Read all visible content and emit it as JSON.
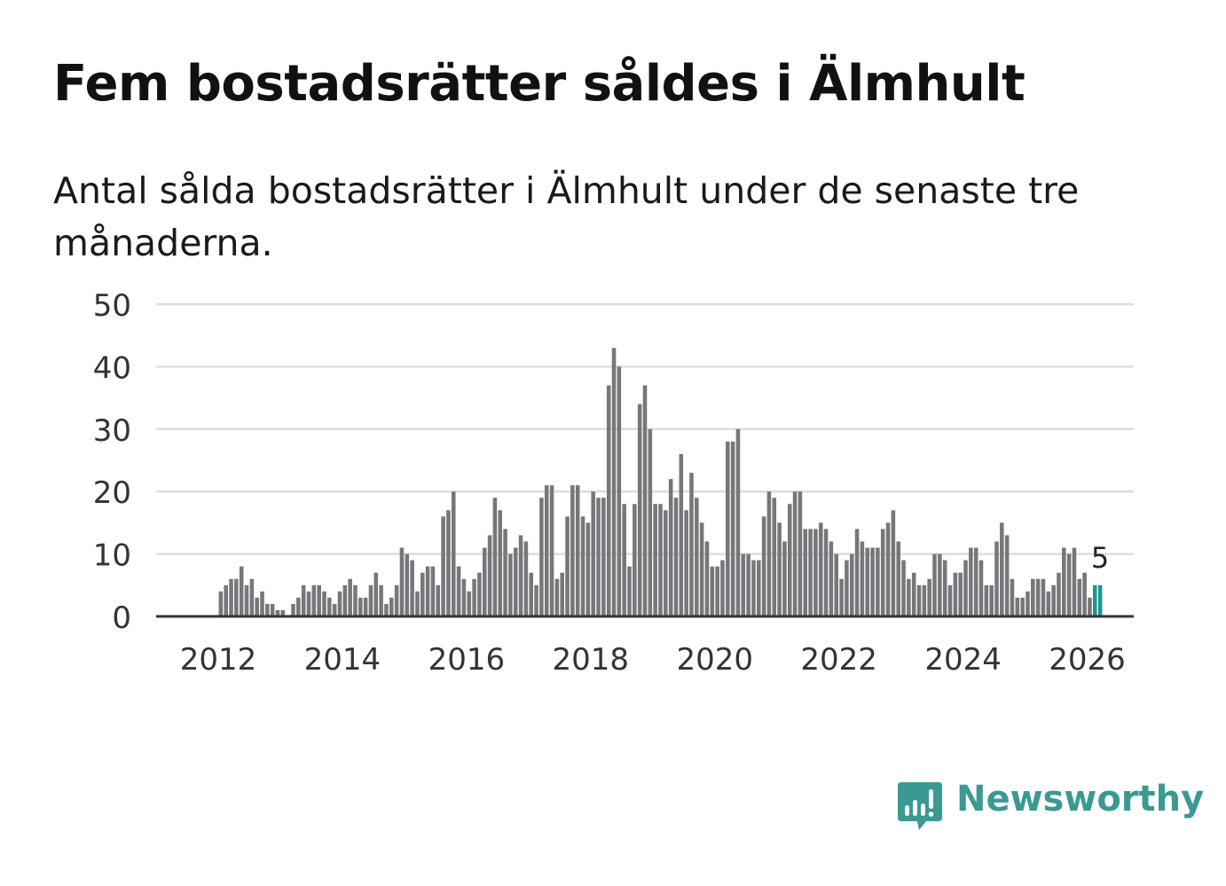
{
  "header": {
    "title": "Fem bostadsrätter såldes i Älmhult",
    "subtitle": "Antal sålda bostadsrätter i Älmhult under de senaste tre månaderna."
  },
  "brand": {
    "name": "Newsworthy",
    "color": "#3a9a93"
  },
  "colors": {
    "bar": "#77767b",
    "highlight": "#1a9890",
    "grid": "#dddddd",
    "axis": "#333333"
  },
  "chart_data": {
    "type": "bar",
    "title": "Fem bostadsrätter såldes i Älmhult",
    "xlabel": "",
    "ylabel": "",
    "ylim": [
      0,
      50
    ],
    "yticks": [
      "0",
      "10",
      "20",
      "30",
      "40",
      "50"
    ],
    "xticks": [
      "2012",
      "2014",
      "2016",
      "2018",
      "2020",
      "2022",
      "2024",
      "2026"
    ],
    "x_start": "2011-01",
    "x_end": "2026-10",
    "first_bar": "2012-01",
    "annotation": {
      "text": "5",
      "bar_index": 170
    },
    "highlight_from_index": 169,
    "values": [
      4,
      5,
      6,
      6,
      8,
      5,
      6,
      3,
      4,
      2,
      2,
      1,
      1,
      0,
      2,
      3,
      5,
      4,
      5,
      5,
      4,
      3,
      2,
      4,
      5,
      6,
      5,
      3,
      3,
      5,
      7,
      5,
      2,
      3,
      5,
      11,
      10,
      9,
      4,
      7,
      8,
      8,
      5,
      16,
      17,
      20,
      8,
      6,
      4,
      6,
      7,
      11,
      13,
      19,
      17,
      14,
      10,
      11,
      13,
      12,
      7,
      5,
      19,
      21,
      21,
      6,
      7,
      16,
      21,
      21,
      16,
      15,
      20,
      19,
      19,
      37,
      43,
      40,
      18,
      8,
      18,
      34,
      37,
      30,
      18,
      18,
      17,
      22,
      19,
      26,
      17,
      23,
      19,
      15,
      12,
      8,
      8,
      9,
      28,
      28,
      30,
      10,
      10,
      9,
      9,
      16,
      20,
      19,
      15,
      12,
      18,
      20,
      20,
      14,
      14,
      14,
      15,
      14,
      12,
      10,
      6,
      9,
      10,
      14,
      12,
      11,
      11,
      11,
      14,
      15,
      17,
      12,
      9,
      6,
      7,
      5,
      5,
      6,
      10,
      10,
      9,
      5,
      7,
      7,
      9,
      11,
      11,
      9,
      5,
      5,
      12,
      15,
      13,
      6,
      3,
      3,
      4,
      6,
      6,
      6,
      4,
      5,
      7,
      11,
      10,
      11,
      6,
      7,
      3,
      5,
      5
    ]
  }
}
